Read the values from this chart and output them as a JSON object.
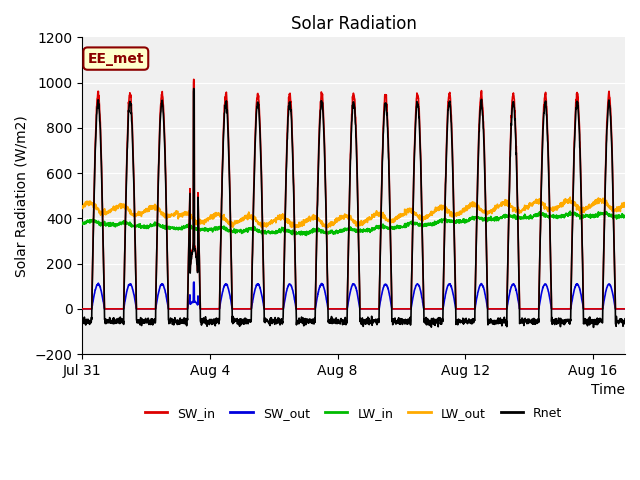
{
  "title": "Solar Radiation",
  "ylabel": "Solar Radiation (W/m2)",
  "xlabel": "Time",
  "ylim": [
    -200,
    1200
  ],
  "yticks": [
    -200,
    0,
    200,
    400,
    600,
    800,
    1000,
    1200
  ],
  "xtick_labels": [
    "Jul 31",
    "Aug 4",
    "Aug 8",
    "Aug 12",
    "Aug 16"
  ],
  "plot_bg_color": "#f0f0f0",
  "fig_bg_color": "#ffffff",
  "label_box": "EE_met",
  "series": {
    "SW_in": {
      "color": "#dd0000",
      "lw": 1.2
    },
    "SW_out": {
      "color": "#0000dd",
      "lw": 1.2
    },
    "LW_in": {
      "color": "#00bb00",
      "lw": 1.2
    },
    "LW_out": {
      "color": "#ffaa00",
      "lw": 1.2
    },
    "Rnet": {
      "color": "#000000",
      "lw": 1.2
    }
  },
  "n_days": 17,
  "pts_per_day": 144,
  "start_day": 0,
  "xtick_pos": [
    0,
    4,
    8,
    12,
    16
  ]
}
